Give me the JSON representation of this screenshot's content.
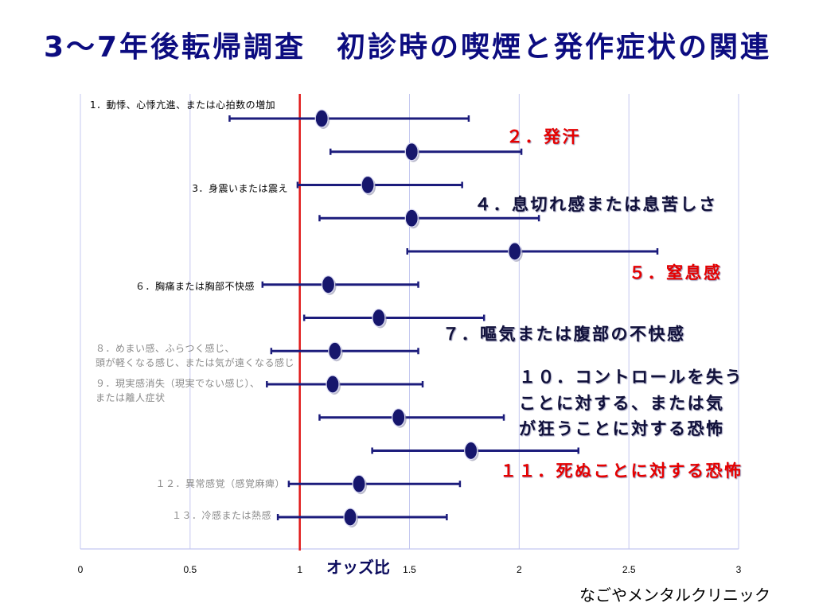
{
  "title": "3〜7年後転帰調査　初診時の喫煙と発作症状の関連",
  "footer": "なごやメンタルクリニック",
  "colors": {
    "title": "#0c0c80",
    "grid": "#c4c8f0",
    "reference_line": "#e01818",
    "ci_line": "#1c1c7c",
    "marker": "#16166c"
  },
  "chart_data": {
    "type": "scatter",
    "xlabel": "オッズ比",
    "xlim": [
      0,
      3
    ],
    "x_ticks": [
      0,
      0.5,
      1,
      1.5,
      2,
      2.5,
      3
    ],
    "grid": true,
    "reference_line": 1,
    "points": [
      {
        "label_lines": [
          "1．動悸、心悸亢進、または心拍数の増加"
        ],
        "odds_ratio": 1.1,
        "ci": [
          0.68,
          1.77
        ],
        "label_color": "#000000"
      },
      {
        "label_lines": [
          "２．発汗"
        ],
        "odds_ratio": 1.51,
        "ci": [
          1.14,
          2.01
        ],
        "label_color": "#e60000"
      },
      {
        "label_lines": [
          "3．身震いまたは震え"
        ],
        "odds_ratio": 1.31,
        "ci": [
          0.99,
          1.74
        ],
        "label_color": "#000000"
      },
      {
        "label_lines": [
          "４．息切れ感または息苦しさ"
        ],
        "odds_ratio": 1.51,
        "ci": [
          1.09,
          2.09
        ],
        "label_color": "#10103a"
      },
      {
        "label_lines": [
          "５．窒息感"
        ],
        "odds_ratio": 1.98,
        "ci": [
          1.49,
          2.63
        ],
        "label_color": "#e60000"
      },
      {
        "label_lines": [
          "６．胸痛または胸部不快感"
        ],
        "odds_ratio": 1.13,
        "ci": [
          0.83,
          1.54
        ],
        "label_color": "#000000"
      },
      {
        "label_lines": [
          "７．嘔気または腹部の不快感"
        ],
        "odds_ratio": 1.36,
        "ci": [
          1.02,
          1.84
        ],
        "label_color": "#10103a"
      },
      {
        "label_lines": [
          "８．めまい感、ふらつく感じ、",
          "頭が軽くなる感じ、または気が遠くなる感じ"
        ],
        "odds_ratio": 1.16,
        "ci": [
          0.87,
          1.54
        ],
        "label_color": "#8a8a8a"
      },
      {
        "label_lines": [
          "９．現実感消失（現実でない感じ）、",
          "または離人症状"
        ],
        "odds_ratio": 1.15,
        "ci": [
          0.85,
          1.56
        ],
        "label_color": "#8a8a8a"
      },
      {
        "label_lines": [
          "１０．コントロールを失う",
          "ことに対する、または気",
          "が狂うことに対する恐怖"
        ],
        "odds_ratio": 1.45,
        "ci": [
          1.09,
          1.93
        ],
        "label_color": "#10103a"
      },
      {
        "label_lines": [
          "１１．死ぬことに対する恐怖"
        ],
        "odds_ratio": 1.78,
        "ci": [
          1.33,
          2.27
        ],
        "label_color": "#e60000"
      },
      {
        "label_lines": [
          "１２．異常感覚（感覚麻痺）"
        ],
        "odds_ratio": 1.27,
        "ci": [
          0.95,
          1.73
        ],
        "label_color": "#8a8a8a"
      },
      {
        "label_lines": [
          "１３．冷感または熱感"
        ],
        "odds_ratio": 1.23,
        "ci": [
          0.9,
          1.67
        ],
        "label_color": "#8a8a8a"
      }
    ]
  }
}
